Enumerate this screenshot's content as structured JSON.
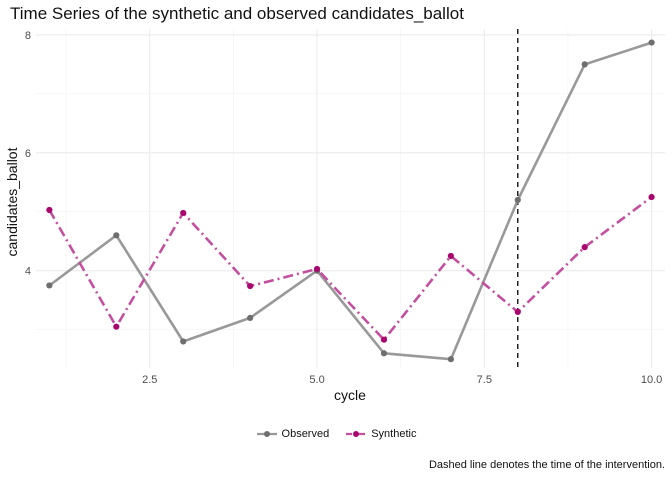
{
  "chart_data": {
    "type": "line",
    "title": "Time Series of the synthetic and observed candidates_ballot",
    "xlabel": "cycle",
    "ylabel": "candidates_ballot",
    "xlim": [
      0.8,
      10.2
    ],
    "ylim": [
      2.35,
      8.1
    ],
    "x_ticks": [
      2.5,
      5.0,
      7.5,
      10.0
    ],
    "x_tick_labels": [
      "2.5",
      "5.0",
      "7.5",
      "10.0"
    ],
    "y_ticks": [
      4,
      6,
      8
    ],
    "y_tick_labels": [
      "4",
      "6",
      "8"
    ],
    "grid": true,
    "legend_position": "bottom",
    "intervention_x": 8,
    "series": [
      {
        "name": "Observed",
        "color": "#999999",
        "point_color": "#6e6e6e",
        "line_style": "solid",
        "x": [
          1,
          2,
          3,
          4,
          5,
          6,
          7,
          8,
          9,
          10
        ],
        "values": [
          3.75,
          4.6,
          2.8,
          3.2,
          4.0,
          2.6,
          2.5,
          5.2,
          7.5,
          7.87
        ]
      },
      {
        "name": "Synthetic",
        "color": "#c2509f",
        "point_color": "#a8086e",
        "line_style": "dashdot",
        "x": [
          1,
          2,
          3,
          4,
          5,
          6,
          7,
          8,
          9,
          10
        ],
        "values": [
          5.03,
          3.05,
          4.98,
          3.74,
          4.03,
          2.83,
          4.25,
          3.3,
          4.4,
          5.25
        ]
      }
    ]
  },
  "caption": "Dashed line denotes the time of the intervention."
}
